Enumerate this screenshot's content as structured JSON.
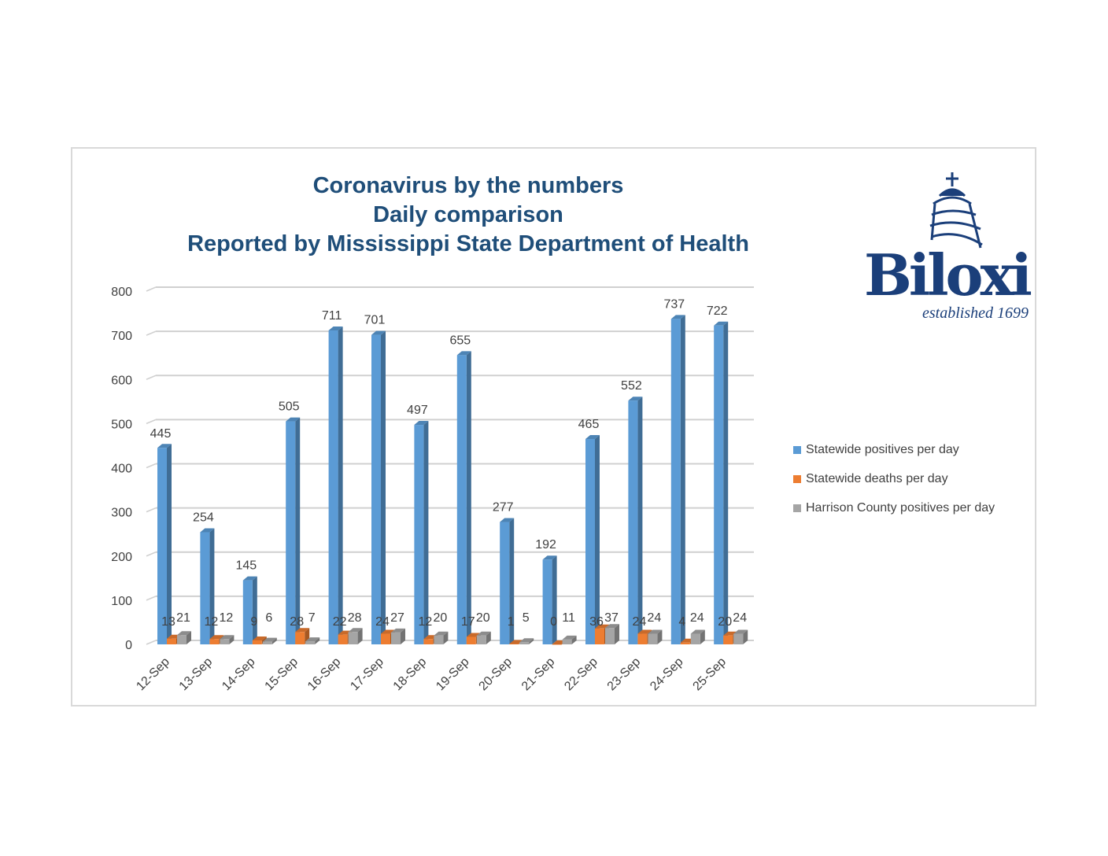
{
  "chart_data": {
    "type": "bar",
    "title": [
      "Coronavirus by the numbers",
      "Daily comparison",
      "Reported by Mississippi State Department of Health"
    ],
    "categories": [
      "12-Sep",
      "13-Sep",
      "14-Sep",
      "15-Sep",
      "16-Sep",
      "17-Sep",
      "18-Sep",
      "19-Sep",
      "20-Sep",
      "21-Sep",
      "22-Sep",
      "23-Sep",
      "24-Sep",
      "25-Sep"
    ],
    "series": [
      {
        "name": "Statewide positives per day",
        "color": "#5b9bd5",
        "values": [
          445,
          254,
          145,
          505,
          711,
          701,
          497,
          655,
          277,
          192,
          465,
          552,
          737,
          722
        ]
      },
      {
        "name": "Statewide deaths per day",
        "color": "#ed7d31",
        "values": [
          13,
          12,
          9,
          28,
          22,
          24,
          12,
          17,
          1,
          0,
          36,
          24,
          4,
          20
        ]
      },
      {
        "name": "Harrison County positives per day",
        "color": "#a5a5a5",
        "values": [
          21,
          12,
          6,
          7,
          28,
          27,
          20,
          20,
          5,
          11,
          37,
          24,
          24,
          24
        ]
      }
    ],
    "ylim": [
      0,
      800
    ],
    "yticks": [
      0,
      100,
      200,
      300,
      400,
      500,
      600,
      700,
      800
    ],
    "legend_position": "right",
    "grid": true
  },
  "logo": {
    "name": "Biloxi",
    "tagline": "established 1699"
  }
}
